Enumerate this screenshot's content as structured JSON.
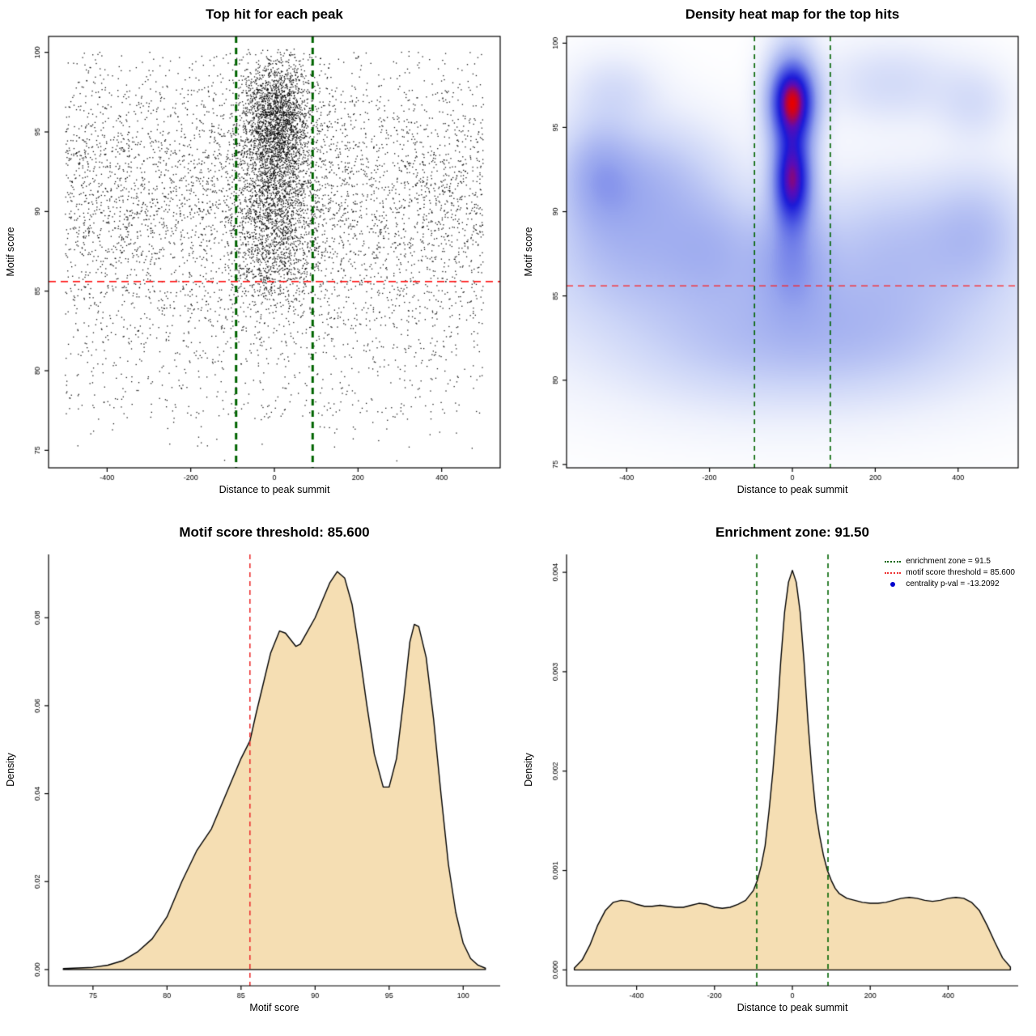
{
  "page": {
    "background": "#ffffff"
  },
  "chart_data": [
    {
      "type": "scatter",
      "title": "Top hit for each peak",
      "xlabel": "Distance to peak summit",
      "ylabel": "Motif score",
      "xlim": [
        -540,
        540
      ],
      "ylim": [
        73.9,
        101.0
      ],
      "xticks": {
        "values": [
          -400,
          -200,
          0,
          200,
          400
        ],
        "labels": [
          "-400",
          "-200",
          "0",
          "200",
          "400"
        ]
      },
      "yticks": {
        "values": [
          75,
          80,
          85,
          90,
          95,
          100
        ],
        "labels": [
          "75",
          "80",
          "85",
          "90",
          "95",
          "100"
        ]
      },
      "axis_style": "box",
      "point_color": "#000000",
      "point_size": 1.3,
      "n_points": 9000,
      "seed": 42,
      "scatter_components": [
        {
          "frac": 0.48,
          "x": {
            "dist": "uniform",
            "a": -500,
            "b": 500
          },
          "y": {
            "dist": "normal",
            "mu": 91.0,
            "sd": 4.4,
            "min": 74.5,
            "max": 100.1
          }
        },
        {
          "frac": 0.07,
          "x": {
            "dist": "uniform",
            "a": -500,
            "b": 500
          },
          "y": {
            "dist": "uniform",
            "a": 77.0,
            "b": 85.5
          }
        },
        {
          "frac": 0.006,
          "x": {
            "dist": "uniform",
            "a": -480,
            "b": 480
          },
          "y": {
            "dist": "uniform",
            "a": 74.3,
            "b": 78.0
          }
        },
        {
          "frac": 0.25,
          "x": {
            "dist": "normal",
            "mu": 5,
            "sd": 44,
            "min": -165,
            "max": 165
          },
          "y": {
            "dist": "normal",
            "mu": 95.8,
            "sd": 2.0,
            "min": 87.0,
            "max": 100.2
          }
        },
        {
          "frac": 0.14,
          "x": {
            "dist": "normal",
            "mu": 0,
            "sd": 50,
            "min": -175,
            "max": 175
          },
          "y": {
            "dist": "normal",
            "mu": 90.6,
            "sd": 2.4,
            "min": 83.5,
            "max": 97.0
          }
        },
        {
          "frac": 0.05,
          "x": {
            "dist": "normal",
            "mu": 0,
            "sd": 55,
            "min": -160,
            "max": 160
          },
          "y": {
            "dist": "normal",
            "mu": 86.6,
            "sd": 1.7,
            "min": 82.0,
            "max": 92.0
          }
        }
      ],
      "vlines": [
        {
          "x": -91.5,
          "color": "#006400",
          "dash": [
            8,
            6
          ],
          "width": 3
        },
        {
          "x": 91.5,
          "color": "#006400",
          "dash": [
            8,
            6
          ],
          "width": 3
        }
      ],
      "hlines": [
        {
          "y": 85.6,
          "color": "#ff1f1f",
          "dash": [
            9,
            6
          ],
          "width": 1.8
        }
      ]
    },
    {
      "type": "heatmap",
      "title": "Density heat map for the top hits",
      "xlabel": "Distance to peak summit",
      "ylabel": "Motif score",
      "xlim": [
        -545,
        545
      ],
      "ylim": [
        74.8,
        100.4
      ],
      "xticks": {
        "values": [
          -400,
          -200,
          0,
          200,
          400
        ],
        "labels": [
          "-400",
          "-200",
          "0",
          "200",
          "400"
        ]
      },
      "yticks": {
        "values": [
          75,
          80,
          85,
          90,
          95,
          100
        ],
        "labels": [
          "75",
          "80",
          "85",
          "90",
          "95",
          "100"
        ]
      },
      "axis_style": "box",
      "gamma": 0.65,
      "colormap": [
        [
          0.0,
          "#ffffff"
        ],
        [
          0.1,
          "#eef1fc"
        ],
        [
          0.25,
          "#ccd5f7"
        ],
        [
          0.45,
          "#98a6ee"
        ],
        [
          0.62,
          "#5663e4"
        ],
        [
          0.78,
          "#1b1bd8"
        ],
        [
          0.88,
          "#5c0bb4"
        ],
        [
          1.0,
          "#e60000"
        ]
      ],
      "kernels": [
        {
          "w": 1.0,
          "x": 0,
          "y": 96.6,
          "sx": 36,
          "sy": 1.55
        },
        {
          "w": 0.8,
          "x": 0,
          "y": 91.9,
          "sx": 30,
          "sy": 1.75
        },
        {
          "w": 0.3,
          "x": 0,
          "y": 94.2,
          "sx": 40,
          "sy": 4.0
        },
        {
          "w": 0.22,
          "x": 0,
          "y": 87.2,
          "sx": 60,
          "sy": 2.2
        },
        {
          "w": 0.26,
          "x": -360,
          "y": 91.8,
          "sx": 130,
          "sy": 2.4
        },
        {
          "w": 0.2,
          "x": -470,
          "y": 92.3,
          "sx": 60,
          "sy": 2.2
        },
        {
          "w": 0.18,
          "x": -400,
          "y": 87.6,
          "sx": 140,
          "sy": 2.4
        },
        {
          "w": 0.16,
          "x": -180,
          "y": 88.0,
          "sx": 90,
          "sy": 2.2
        },
        {
          "w": 0.18,
          "x": 260,
          "y": 88.3,
          "sx": 150,
          "sy": 2.6
        },
        {
          "w": 0.16,
          "x": 450,
          "y": 89.0,
          "sx": 80,
          "sy": 2.4
        },
        {
          "w": 0.12,
          "x": 240,
          "y": 97.6,
          "sx": 110,
          "sy": 1.6
        },
        {
          "w": 0.1,
          "x": 440,
          "y": 96.4,
          "sx": 60,
          "sy": 1.5
        },
        {
          "w": 0.1,
          "x": -430,
          "y": 97.2,
          "sx": 70,
          "sy": 1.4
        },
        {
          "w": 0.16,
          "x": 0,
          "y": 84.0,
          "sx": 400,
          "sy": 3.2
        },
        {
          "w": 0.1,
          "x": -100,
          "y": 82.0,
          "sx": 200,
          "sy": 2.5
        },
        {
          "w": 0.1,
          "x": 200,
          "y": 82.5,
          "sx": 180,
          "sy": 2.5
        }
      ],
      "vlines": [
        {
          "x": -91.5,
          "color": "#006400",
          "dash": [
            6,
            5
          ],
          "width": 1.6
        },
        {
          "x": 91.5,
          "color": "#006400",
          "dash": [
            6,
            5
          ],
          "width": 1.6
        }
      ],
      "hlines": [
        {
          "y": 85.6,
          "color": "#ff1f1f",
          "dash": [
            8,
            6
          ],
          "width": 1.4
        }
      ]
    },
    {
      "type": "density",
      "title": "Motif score threshold: 85.600",
      "xlabel": "Motif score",
      "ylabel": "Density",
      "xlim": [
        72.0,
        102.5
      ],
      "ylim": [
        -0.0037,
        0.0944
      ],
      "xticks": {
        "values": [
          75,
          80,
          85,
          90,
          95,
          100
        ],
        "labels": [
          "75",
          "80",
          "85",
          "90",
          "95",
          "100"
        ]
      },
      "yticks": {
        "values": [
          0.0,
          0.02,
          0.04,
          0.06,
          0.08
        ],
        "labels": [
          "0.00",
          "0.02",
          "0.04",
          "0.06",
          "0.08"
        ]
      },
      "axis_style": "L",
      "fill": "#F5DEB3",
      "stroke": "#000000",
      "curve": [
        [
          73.0,
          0.0002
        ],
        [
          75.0,
          0.0005
        ],
        [
          76.0,
          0.001
        ],
        [
          77.0,
          0.002
        ],
        [
          78.0,
          0.004
        ],
        [
          79.0,
          0.007
        ],
        [
          80.0,
          0.012
        ],
        [
          81.0,
          0.02
        ],
        [
          82.0,
          0.027
        ],
        [
          83.0,
          0.032
        ],
        [
          84.0,
          0.04
        ],
        [
          85.0,
          0.048
        ],
        [
          85.6,
          0.052
        ],
        [
          86.0,
          0.058
        ],
        [
          86.5,
          0.065
        ],
        [
          87.0,
          0.072
        ],
        [
          87.6,
          0.077
        ],
        [
          88.0,
          0.0765
        ],
        [
          88.7,
          0.0735
        ],
        [
          89.0,
          0.074
        ],
        [
          89.5,
          0.077
        ],
        [
          90.0,
          0.08
        ],
        [
          90.5,
          0.084
        ],
        [
          91.0,
          0.088
        ],
        [
          91.5,
          0.0905
        ],
        [
          92.0,
          0.089
        ],
        [
          92.5,
          0.083
        ],
        [
          93.0,
          0.072
        ],
        [
          93.5,
          0.06
        ],
        [
          94.0,
          0.049
        ],
        [
          94.6,
          0.0415
        ],
        [
          95.0,
          0.0415
        ],
        [
          95.5,
          0.048
        ],
        [
          96.0,
          0.062
        ],
        [
          96.4,
          0.0745
        ],
        [
          96.7,
          0.0785
        ],
        [
          97.0,
          0.078
        ],
        [
          97.5,
          0.071
        ],
        [
          98.0,
          0.057
        ],
        [
          98.5,
          0.04
        ],
        [
          99.0,
          0.024
        ],
        [
          99.5,
          0.013
        ],
        [
          100.0,
          0.006
        ],
        [
          100.5,
          0.0025
        ],
        [
          101.0,
          0.001
        ],
        [
          101.5,
          0.0003
        ]
      ],
      "vlines": [
        {
          "x": 85.6,
          "color": "#ee3333",
          "dash": [
            6,
            5
          ],
          "width": 1.6
        }
      ],
      "hlines": []
    },
    {
      "type": "density",
      "title": "Enrichment zone: 91.50",
      "xlabel": "Distance to peak summit",
      "ylabel": "Density",
      "xlim": [
        -580,
        580
      ],
      "ylim": [
        -0.00016,
        0.00418
      ],
      "xticks": {
        "values": [
          -400,
          -200,
          0,
          200,
          400
        ],
        "labels": [
          "-400",
          "-200",
          "0",
          "200",
          "400"
        ]
      },
      "yticks": {
        "values": [
          0.0,
          0.001,
          0.002,
          0.003,
          0.004
        ],
        "labels": [
          "0.000",
          "0.001",
          "0.002",
          "0.003",
          "0.004"
        ]
      },
      "axis_style": "L",
      "fill": "#F5DEB3",
      "stroke": "#000000",
      "curve": [
        [
          -560,
          2e-05
        ],
        [
          -540,
          0.0001
        ],
        [
          -520,
          0.00025
        ],
        [
          -500,
          0.00045
        ],
        [
          -480,
          0.0006
        ],
        [
          -460,
          0.00068
        ],
        [
          -440,
          0.0007
        ],
        [
          -420,
          0.00069
        ],
        [
          -400,
          0.00066
        ],
        [
          -380,
          0.00064
        ],
        [
          -360,
          0.00064
        ],
        [
          -340,
          0.00065
        ],
        [
          -320,
          0.00064
        ],
        [
          -300,
          0.00063
        ],
        [
          -280,
          0.00063
        ],
        [
          -260,
          0.00065
        ],
        [
          -240,
          0.00067
        ],
        [
          -220,
          0.00066
        ],
        [
          -200,
          0.00063
        ],
        [
          -180,
          0.00062
        ],
        [
          -160,
          0.00063
        ],
        [
          -140,
          0.00066
        ],
        [
          -120,
          0.0007
        ],
        [
          -100,
          0.0008
        ],
        [
          -90,
          0.0009
        ],
        [
          -80,
          0.00105
        ],
        [
          -70,
          0.00125
        ],
        [
          -60,
          0.0016
        ],
        [
          -50,
          0.002
        ],
        [
          -40,
          0.0025
        ],
        [
          -30,
          0.0031
        ],
        [
          -20,
          0.0036
        ],
        [
          -10,
          0.0039
        ],
        [
          0,
          0.00402
        ],
        [
          10,
          0.0039
        ],
        [
          20,
          0.0036
        ],
        [
          30,
          0.0031
        ],
        [
          40,
          0.0025
        ],
        [
          50,
          0.002
        ],
        [
          60,
          0.0016
        ],
        [
          70,
          0.00135
        ],
        [
          80,
          0.00115
        ],
        [
          90,
          0.001
        ],
        [
          100,
          0.0009
        ],
        [
          110,
          0.00082
        ],
        [
          120,
          0.00077
        ],
        [
          140,
          0.00072
        ],
        [
          160,
          0.0007
        ],
        [
          180,
          0.00068
        ],
        [
          200,
          0.00067
        ],
        [
          220,
          0.00067
        ],
        [
          240,
          0.00068
        ],
        [
          260,
          0.0007
        ],
        [
          280,
          0.00072
        ],
        [
          300,
          0.00073
        ],
        [
          320,
          0.00072
        ],
        [
          340,
          0.0007
        ],
        [
          360,
          0.00069
        ],
        [
          380,
          0.0007
        ],
        [
          400,
          0.00072
        ],
        [
          420,
          0.00073
        ],
        [
          440,
          0.00072
        ],
        [
          460,
          0.00068
        ],
        [
          480,
          0.0006
        ],
        [
          500,
          0.00045
        ],
        [
          520,
          0.00028
        ],
        [
          540,
          0.00012
        ],
        [
          560,
          3e-05
        ]
      ],
      "vlines": [
        {
          "x": -91.5,
          "color": "#006400",
          "dash": [
            6,
            5
          ],
          "width": 1.6
        },
        {
          "x": 91.5,
          "color": "#006400",
          "dash": [
            6,
            5
          ],
          "width": 1.6
        }
      ],
      "hlines": [],
      "legend": {
        "items": [
          {
            "label": "enrichment zone = 91.5",
            "type": "line",
            "color": "#006400"
          },
          {
            "label": "motif score threshold = 85.600",
            "type": "line",
            "color": "#ee3333"
          },
          {
            "label": "centrality p-val = -13.2092",
            "type": "point",
            "color": "#0000cd"
          }
        ]
      }
    }
  ]
}
